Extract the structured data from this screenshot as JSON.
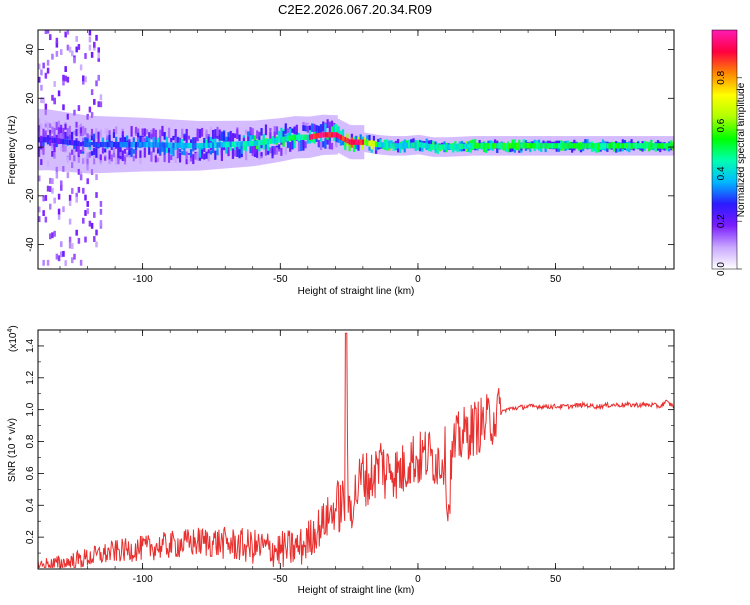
{
  "title": "C2E2.2026.067.20.34.R09",
  "chart_data": [
    {
      "type": "heatmap",
      "xlabel": "Height of straight line (km)",
      "ylabel": "Frequency (Hz)",
      "xlim": [
        -138,
        93
      ],
      "ylim": [
        -50,
        48
      ],
      "xticks": [
        -100,
        -50,
        0,
        50
      ],
      "yticks": [
        40,
        20,
        0,
        -20,
        -40
      ],
      "colorbar": {
        "label": "Normalized spectral amplitude",
        "range": [
          0,
          1
        ],
        "ticks": [
          "0.0",
          "0.2",
          "0.4",
          "0.6",
          "0.8"
        ],
        "colors": [
          "#ffffff",
          "#c9a8ff",
          "#7a1cff",
          "#2a1cff",
          "#00b8ff",
          "#00ffb0",
          "#00ff00",
          "#b0ff00",
          "#ffff00",
          "#ff8800",
          "#ff0040",
          "#ff1cb4"
        ]
      },
      "ridge": {
        "x": [
          -135,
          -120,
          -100,
          -80,
          -60,
          -50,
          -45,
          -40,
          -35,
          -30,
          -25,
          -20,
          -15,
          -10,
          -5,
          0,
          5,
          10,
          20,
          40,
          60,
          80,
          93
        ],
        "y": [
          3,
          1,
          1,
          0.5,
          1.5,
          3,
          4,
          4,
          5,
          5,
          2,
          2,
          1,
          0.5,
          0.5,
          1,
          0,
          0,
          0.5,
          0.5,
          0.5,
          0.5,
          0.5
        ]
      }
    },
    {
      "type": "line",
      "xlabel": "Height of straight line (km)",
      "ylabel": "SNR (10 * v/v)",
      "exponent_label": "(x10",
      "exponent": "4",
      "exponent_close": ")",
      "xlim": [
        -138,
        93
      ],
      "ylim": [
        0,
        1.5
      ],
      "xticks": [
        -100,
        -50,
        0,
        50
      ],
      "yticks": [
        1.4,
        1.2,
        1.0,
        0.8,
        0.6,
        0.4,
        0.2
      ],
      "color": "#e8302f",
      "series": [
        {
          "x": [
            -138,
            -130,
            -125,
            -120,
            -115,
            -110,
            -105,
            -100,
            -95,
            -90,
            -85,
            -80,
            -75,
            -70,
            -65,
            -60,
            -55,
            -50,
            -45,
            -42,
            -40,
            -35,
            -32,
            -30,
            -28,
            -26.5,
            -26,
            -25.5,
            -25,
            -22,
            -20,
            -18,
            -15,
            -13,
            -12,
            -10,
            -8,
            -5,
            -3,
            0,
            3,
            5,
            8,
            10,
            11,
            12,
            13,
            15,
            18,
            20,
            22,
            25,
            28,
            30,
            32,
            35,
            40,
            45,
            50,
            55,
            60,
            65,
            70,
            75,
            80,
            85,
            88,
            90,
            93
          ],
          "y": [
            0.02,
            0.03,
            0.05,
            0.07,
            0.09,
            0.11,
            0.12,
            0.13,
            0.14,
            0.15,
            0.16,
            0.17,
            0.17,
            0.16,
            0.15,
            0.14,
            0.13,
            0.12,
            0.13,
            0.14,
            0.18,
            0.28,
            0.34,
            0.38,
            0.4,
            0.42,
            1.48,
            0.45,
            0.38,
            0.5,
            0.6,
            0.55,
            0.62,
            0.7,
            0.58,
            0.66,
            0.6,
            0.62,
            0.7,
            0.68,
            0.72,
            0.7,
            0.68,
            0.72,
            0.3,
            0.65,
            0.76,
            0.82,
            0.86,
            0.88,
            0.9,
            0.92,
            0.96,
            0.98,
            1.0,
            1.01,
            1.02,
            1.02,
            1.02,
            1.02,
            1.03,
            1.02,
            1.03,
            1.03,
            1.03,
            1.03,
            1.02,
            1.05,
            1.02
          ]
        }
      ]
    }
  ]
}
